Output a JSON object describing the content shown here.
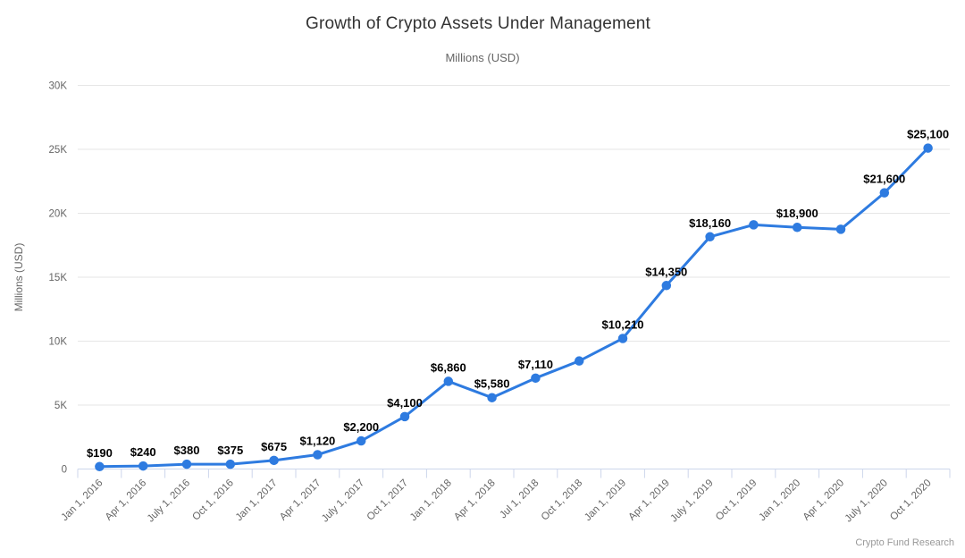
{
  "chart_data": {
    "type": "line",
    "title": "Growth of Crypto Assets Under Management",
    "subtitle": "Millions (USD)",
    "ylabel": "Millions (USD)",
    "credit": "Crypto Fund Research",
    "legend": "none",
    "grid": "horizontal",
    "ylim": [
      0,
      30000
    ],
    "yticks": [
      {
        "value": 0,
        "label": "0"
      },
      {
        "value": 5000,
        "label": "5K"
      },
      {
        "value": 10000,
        "label": "10K"
      },
      {
        "value": 15000,
        "label": "15K"
      },
      {
        "value": 20000,
        "label": "20K"
      },
      {
        "value": 25000,
        "label": "25K"
      },
      {
        "value": 30000,
        "label": "30K"
      }
    ],
    "categories": [
      "Jan 1, 2016",
      "Apr 1, 2016",
      "July 1, 2016",
      "Oct 1, 2016",
      "Jan 1, 2017",
      "Apr 1, 2017",
      "July 1, 2017",
      "Oct 1, 2017",
      "Jan 1, 2018",
      "Apr 1, 2018",
      "Jul 1, 2018",
      "Oct 1, 2018",
      "Jan 1, 2019",
      "Apr 1, 2019",
      "July 1, 2019",
      "Oct 1, 2019",
      "Jan 1, 2020",
      "Apr 1, 2020",
      "July 1, 2020",
      "Oct 1, 2020"
    ],
    "series": [
      {
        "name": "Crypto Assets Under Management",
        "values": [
          190,
          240,
          380,
          375,
          675,
          1120,
          2200,
          4100,
          6860,
          5580,
          7110,
          8450,
          10210,
          14350,
          18160,
          19100,
          18900,
          18750,
          21600,
          25100
        ]
      }
    ],
    "point_labels": [
      "$190",
      "$240",
      "$380",
      "$375",
      "$675",
      "$1,120",
      "$2,200",
      "$4,100",
      "$6,860",
      "$5,580",
      "$7,110",
      "",
      "$10,210",
      "$14,350",
      "$18,160",
      "",
      "$18,900",
      "",
      "$21,600",
      "$25,100"
    ],
    "colors": {
      "line": "#2e7be0",
      "marker": "#2e7be0",
      "grid": "#e6e6e6",
      "axis_line": "#ccd6eb",
      "tick_text": "#666666",
      "data_label": "#000000",
      "title": "#333333",
      "subtitle": "#666666",
      "credit": "#999999"
    }
  }
}
